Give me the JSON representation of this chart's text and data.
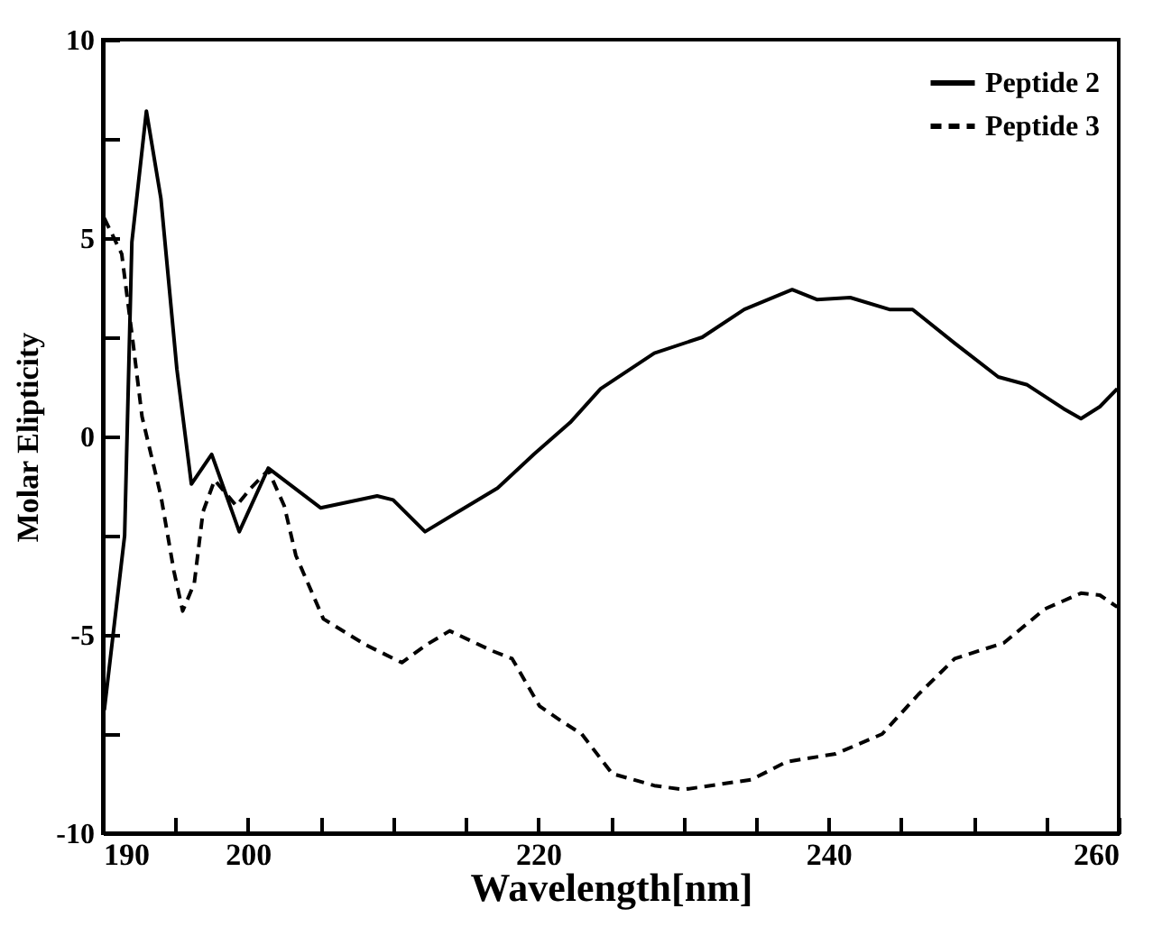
{
  "chart_data": {
    "type": "line",
    "xlabel": "Wavelength[nm]",
    "ylabel": "Molar Elipticity",
    "xlim": [
      190,
      260
    ],
    "ylim": [
      -10,
      10
    ],
    "xticks": [
      190,
      {
        "value": 195,
        "label": null
      },
      200,
      {
        "value": 205,
        "label": null
      },
      {
        "value": 210,
        "label": null
      },
      {
        "value": 215,
        "label": null
      },
      220,
      {
        "value": 225,
        "label": null
      },
      {
        "value": 230,
        "label": null
      },
      {
        "value": 235,
        "label": null
      },
      240,
      {
        "value": 245,
        "label": null
      },
      {
        "value": 250,
        "label": null
      },
      {
        "value": 255,
        "label": null
      },
      260
    ],
    "yticks": [
      -10,
      {
        "value": -7.5,
        "label": null
      },
      -5,
      {
        "value": -2.5,
        "label": null
      },
      0,
      {
        "value": 2.5,
        "label": null
      },
      5,
      {
        "value": 7.5,
        "label": null
      },
      10
    ],
    "legend": "top right",
    "marker": "none",
    "series": [
      {
        "name": "Peptide 2",
        "color": "#000000",
        "line_style": "solid",
        "x": [
          190.1,
          191.5,
          192.0,
          193.0,
          194.0,
          195.1,
          196.1,
          197.5,
          199.4,
          201.4,
          205.0,
          208.9,
          210.0,
          212.2,
          217.2,
          219.7,
          222.2,
          224.3,
          228.0,
          231.3,
          234.2,
          237.5,
          239.2,
          241.5,
          244.2,
          245.8,
          248.7,
          251.7,
          253.7,
          256.2,
          257.4,
          258.7,
          259.9
        ],
        "values": [
          -6.9,
          -2.5,
          4.9,
          8.2,
          6.0,
          1.7,
          -1.2,
          -0.45,
          -2.4,
          -0.8,
          -1.8,
          -1.5,
          -1.6,
          -2.4,
          -1.3,
          -0.45,
          0.35,
          1.2,
          2.1,
          2.5,
          3.2,
          3.7,
          3.45,
          3.5,
          3.2,
          3.2,
          2.35,
          1.5,
          1.3,
          0.7,
          0.45,
          0.75,
          1.2
        ]
      },
      {
        "name": "Peptide 3",
        "color": "#000000",
        "line_style": "dashed",
        "x": [
          190.1,
          191.3,
          192.1,
          192.7,
          194.0,
          194.9,
          195.5,
          196.3,
          196.9,
          197.7,
          199.2,
          200.2,
          201.4,
          202.5,
          203.3,
          205.2,
          208.1,
          210.6,
          212.3,
          213.9,
          216.8,
          218.2,
          220.1,
          221.5,
          223.0,
          225.1,
          228.0,
          230.0,
          234.7,
          237.1,
          240.5,
          243.7,
          246.2,
          248.7,
          252.1,
          254.9,
          257.4,
          258.7,
          259.9
        ],
        "values": [
          5.5,
          4.6,
          2.3,
          0.5,
          -1.5,
          -3.4,
          -4.4,
          -3.7,
          -1.9,
          -1.1,
          -1.75,
          -1.3,
          -0.85,
          -1.75,
          -3.0,
          -4.6,
          -5.25,
          -5.7,
          -5.25,
          -4.9,
          -5.4,
          -5.6,
          -6.8,
          -7.15,
          -7.5,
          -8.5,
          -8.8,
          -8.9,
          -8.65,
          -8.2,
          -8.0,
          -7.5,
          -6.5,
          -5.6,
          -5.2,
          -4.35,
          -3.95,
          -4.0,
          -4.3
        ]
      }
    ]
  }
}
